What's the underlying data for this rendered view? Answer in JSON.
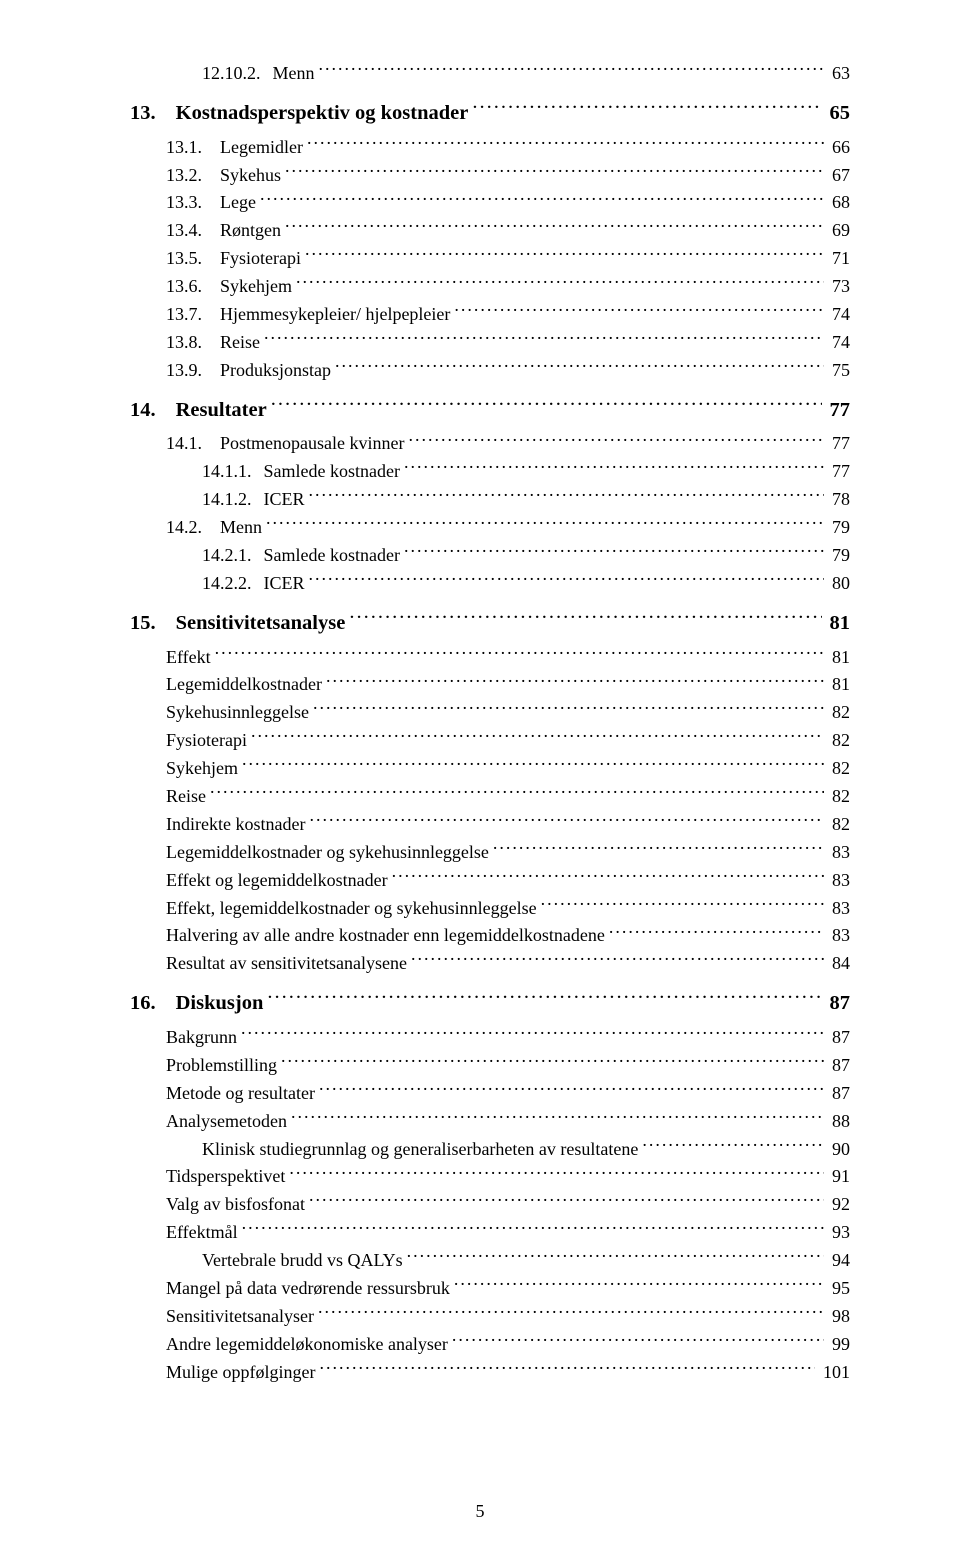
{
  "footer_page": "5",
  "entries": [
    {
      "cls": "lvl3",
      "num": "12.10.2.",
      "title": "Menn",
      "page": "63"
    },
    {
      "cls": "lvl1",
      "num": "13.",
      "title": "Kostnadsperspektiv og kostnader",
      "page": "65"
    },
    {
      "cls": "lvl2",
      "num": "13.1.",
      "title": "Legemidler",
      "page": "66"
    },
    {
      "cls": "lvl2",
      "num": "13.2.",
      "title": "Sykehus",
      "page": "67"
    },
    {
      "cls": "lvl2",
      "num": "13.3.",
      "title": "Lege",
      "page": "68"
    },
    {
      "cls": "lvl2",
      "num": "13.4.",
      "title": "Røntgen",
      "page": "69"
    },
    {
      "cls": "lvl2",
      "num": "13.5.",
      "title": "Fysioterapi",
      "page": "71"
    },
    {
      "cls": "lvl2",
      "num": "13.6.",
      "title": "Sykehjem",
      "page": "73"
    },
    {
      "cls": "lvl2",
      "num": "13.7.",
      "title": "Hjemmesykepleier/ hjelpepleier",
      "page": "74"
    },
    {
      "cls": "lvl2",
      "num": "13.8.",
      "title": "Reise",
      "page": "74"
    },
    {
      "cls": "lvl2",
      "num": "13.9.",
      "title": "Produksjonstap",
      "page": "75"
    },
    {
      "cls": "lvl1",
      "num": "14.",
      "title": "Resultater",
      "page": "77"
    },
    {
      "cls": "lvl2",
      "num": "14.1.",
      "title": "Postmenopausale kvinner",
      "page": "77"
    },
    {
      "cls": "lvl3",
      "num": "14.1.1.",
      "title": "Samlede kostnader",
      "page": "77"
    },
    {
      "cls": "lvl3",
      "num": "14.1.2.",
      "title": "ICER",
      "page": "78"
    },
    {
      "cls": "lvl2",
      "num": "14.2.",
      "title": "Menn",
      "page": "79"
    },
    {
      "cls": "lvl3",
      "num": "14.2.1.",
      "title": "Samlede kostnader",
      "page": "79"
    },
    {
      "cls": "lvl3",
      "num": "14.2.2.",
      "title": "ICER",
      "page": "80"
    },
    {
      "cls": "lvl1",
      "num": "15.",
      "title": "Sensitivitetsanalyse",
      "page": "81"
    },
    {
      "cls": "sub",
      "num": "",
      "title": "Effekt",
      "page": "81"
    },
    {
      "cls": "sub",
      "num": "",
      "title": "Legemiddelkostnader",
      "page": "81"
    },
    {
      "cls": "sub",
      "num": "",
      "title": "Sykehusinnleggelse",
      "page": "82"
    },
    {
      "cls": "sub",
      "num": "",
      "title": "Fysioterapi",
      "page": "82"
    },
    {
      "cls": "sub",
      "num": "",
      "title": "Sykehjem",
      "page": "82"
    },
    {
      "cls": "sub",
      "num": "",
      "title": "Reise",
      "page": "82"
    },
    {
      "cls": "sub",
      "num": "",
      "title": "Indirekte kostnader",
      "page": "82"
    },
    {
      "cls": "sub",
      "num": "",
      "title": "Legemiddelkostnader og sykehusinnleggelse",
      "page": "83"
    },
    {
      "cls": "sub",
      "num": "",
      "title": "Effekt og legemiddelkostnader",
      "page": "83"
    },
    {
      "cls": "sub",
      "num": "",
      "title": "Effekt, legemiddelkostnader og sykehusinnleggelse",
      "page": "83"
    },
    {
      "cls": "sub",
      "num": "",
      "title": "Halvering av alle andre kostnader enn legemiddelkostnadene",
      "page": "83"
    },
    {
      "cls": "sub",
      "num": "",
      "title": "Resultat av sensitivitetsanalysene",
      "page": "84"
    },
    {
      "cls": "lvl1",
      "num": "16.",
      "title": "Diskusjon",
      "page": "87"
    },
    {
      "cls": "sub",
      "num": "",
      "title": "Bakgrunn",
      "page": "87"
    },
    {
      "cls": "sub",
      "num": "",
      "title": "Problemstilling",
      "page": "87"
    },
    {
      "cls": "sub",
      "num": "",
      "title": "Metode og resultater",
      "page": "87"
    },
    {
      "cls": "sub",
      "num": "",
      "title": "Analysemetoden",
      "page": "88"
    },
    {
      "cls": "sub2",
      "num": "",
      "title": "Klinisk studiegrunnlag og generaliserbarheten av resultatene",
      "page": "90"
    },
    {
      "cls": "sub",
      "num": "",
      "title": "Tidsperspektivet",
      "page": "91"
    },
    {
      "cls": "sub",
      "num": "",
      "title": "Valg av bisfosfonat",
      "page": "92"
    },
    {
      "cls": "sub",
      "num": "",
      "title": "Effektmål",
      "page": "93"
    },
    {
      "cls": "sub2",
      "num": "",
      "title": "Vertebrale brudd vs QALYs",
      "page": "94"
    },
    {
      "cls": "sub",
      "num": "",
      "title": "Mangel på data vedrørende ressursbruk",
      "page": "95"
    },
    {
      "cls": "sub",
      "num": "",
      "title": "Sensitivitetsanalyser",
      "page": "98"
    },
    {
      "cls": "sub",
      "num": "",
      "title": "Andre legemiddeløkonomiske analyser",
      "page": "99"
    },
    {
      "cls": "sub",
      "num": "",
      "title": "Mulige oppfølginger",
      "page": "101"
    }
  ]
}
